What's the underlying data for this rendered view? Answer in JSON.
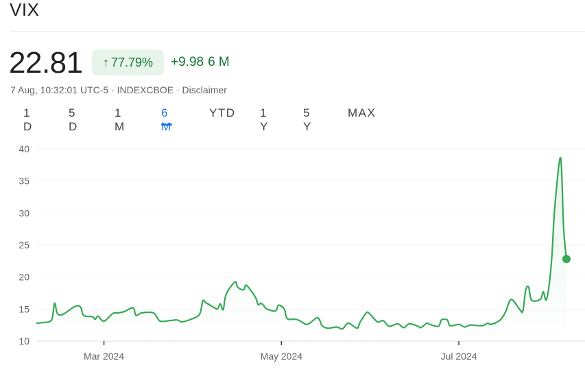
{
  "header": {
    "title": "VIX"
  },
  "quote": {
    "price": "22.81",
    "badge_arrow": "↑",
    "change_percent": "77.79%",
    "change_value": "+9.98",
    "change_period": "6 M",
    "timestamp_source": "7 Aug, 10:32:01 UTC-5 · INDEXCBOE · ",
    "disclaimer": "Disclaimer"
  },
  "tabs": [
    {
      "label": "1 D"
    },
    {
      "label": "5 D"
    },
    {
      "label": "1 M"
    },
    {
      "label": "6 M"
    },
    {
      "label": "YTD"
    },
    {
      "label": "1 Y"
    },
    {
      "label": "5 Y"
    },
    {
      "label": "MAX"
    }
  ],
  "active_tab": "6 M",
  "colors": {
    "line": "#34a853",
    "positive": "#137333",
    "badge_bg": "#e6f4ea",
    "active_tab": "#1a73e8"
  },
  "chart_data": {
    "type": "line",
    "title": "",
    "xlabel": "",
    "ylabel": "",
    "ylim": [
      10,
      40
    ],
    "yticks": [
      10,
      15,
      20,
      25,
      30,
      35,
      40
    ],
    "xlim": [
      "2024-02-07",
      "2024-08-07"
    ],
    "xticks": [
      {
        "label": "Mar 2024",
        "date": "2024-03-01"
      },
      {
        "label": "May 2024",
        "date": "2024-05-01"
      },
      {
        "label": "Jul 2024",
        "date": "2024-07-01"
      }
    ],
    "grid": true,
    "series": [
      {
        "values": [
          [
            "2024-02-07",
            12.8
          ],
          [
            "2024-02-09",
            12.9
          ],
          [
            "2024-02-12",
            13.3
          ],
          [
            "2024-02-13",
            15.9
          ],
          [
            "2024-02-14",
            14.3
          ],
          [
            "2024-02-16",
            14.2
          ],
          [
            "2024-02-20",
            15.4
          ],
          [
            "2024-02-22",
            15.3
          ],
          [
            "2024-02-23",
            14.0
          ],
          [
            "2024-02-26",
            13.8
          ],
          [
            "2024-02-27",
            13.4
          ],
          [
            "2024-02-28",
            13.9
          ],
          [
            "2024-03-01",
            13.1
          ],
          [
            "2024-03-04",
            14.3
          ],
          [
            "2024-03-06",
            14.4
          ],
          [
            "2024-03-08",
            14.6
          ],
          [
            "2024-03-11",
            15.2
          ],
          [
            "2024-03-12",
            14.0
          ],
          [
            "2024-03-14",
            14.4
          ],
          [
            "2024-03-18",
            14.4
          ],
          [
            "2024-03-20",
            13.2
          ],
          [
            "2024-03-22",
            13.1
          ],
          [
            "2024-03-26",
            13.3
          ],
          [
            "2024-03-28",
            13.0
          ],
          [
            "2024-04-01",
            13.6
          ],
          [
            "2024-04-03",
            14.3
          ],
          [
            "2024-04-04",
            16.3
          ],
          [
            "2024-04-05",
            16.0
          ],
          [
            "2024-04-08",
            15.2
          ],
          [
            "2024-04-09",
            15.0
          ],
          [
            "2024-04-10",
            15.8
          ],
          [
            "2024-04-11",
            14.9
          ],
          [
            "2024-04-12",
            17.3
          ],
          [
            "2024-04-15",
            19.2
          ],
          [
            "2024-04-16",
            18.4
          ],
          [
            "2024-04-18",
            18.0
          ],
          [
            "2024-04-19",
            18.7
          ],
          [
            "2024-04-22",
            16.9
          ],
          [
            "2024-04-23",
            15.7
          ],
          [
            "2024-04-24",
            15.9
          ],
          [
            "2024-04-25",
            15.5
          ],
          [
            "2024-04-26",
            15.0
          ],
          [
            "2024-04-29",
            14.7
          ],
          [
            "2024-04-30",
            15.6
          ],
          [
            "2024-05-02",
            15.0
          ],
          [
            "2024-05-03",
            13.5
          ],
          [
            "2024-05-06",
            13.4
          ],
          [
            "2024-05-08",
            13.0
          ],
          [
            "2024-05-10",
            12.6
          ],
          [
            "2024-05-13",
            13.6
          ],
          [
            "2024-05-14",
            13.4
          ],
          [
            "2024-05-15",
            12.4
          ],
          [
            "2024-05-17",
            12.0
          ],
          [
            "2024-05-20",
            12.2
          ],
          [
            "2024-05-22",
            11.9
          ],
          [
            "2024-05-24",
            12.8
          ],
          [
            "2024-05-27",
            12.0
          ],
          [
            "2024-05-28",
            12.9
          ],
          [
            "2024-05-30",
            14.3
          ],
          [
            "2024-05-31",
            14.4
          ],
          [
            "2024-06-03",
            13.0
          ],
          [
            "2024-06-05",
            13.2
          ],
          [
            "2024-06-07",
            12.3
          ],
          [
            "2024-06-10",
            12.7
          ],
          [
            "2024-06-12",
            12.1
          ],
          [
            "2024-06-14",
            12.7
          ],
          [
            "2024-06-17",
            12.3
          ],
          [
            "2024-06-18",
            12.1
          ],
          [
            "2024-06-20",
            12.8
          ],
          [
            "2024-06-21",
            12.6
          ],
          [
            "2024-06-24",
            12.3
          ],
          [
            "2024-06-25",
            13.3
          ],
          [
            "2024-06-27",
            13.3
          ],
          [
            "2024-06-28",
            12.4
          ],
          [
            "2024-07-01",
            12.6
          ],
          [
            "2024-07-03",
            12.2
          ],
          [
            "2024-07-05",
            12.5
          ],
          [
            "2024-07-09",
            12.4
          ],
          [
            "2024-07-11",
            12.8
          ],
          [
            "2024-07-12",
            12.6
          ],
          [
            "2024-07-15",
            13.2
          ],
          [
            "2024-07-17",
            14.5
          ],
          [
            "2024-07-19",
            16.5
          ],
          [
            "2024-07-22",
            14.9
          ],
          [
            "2024-07-23",
            14.7
          ],
          [
            "2024-07-24",
            18.0
          ],
          [
            "2024-07-25",
            18.4
          ],
          [
            "2024-07-26",
            16.4
          ],
          [
            "2024-07-29",
            16.5
          ],
          [
            "2024-07-30",
            17.7
          ],
          [
            "2024-07-31",
            16.4
          ],
          [
            "2024-08-01",
            18.6
          ],
          [
            "2024-08-02",
            23.4
          ],
          [
            "2024-08-03",
            31.0
          ],
          [
            "2024-08-05",
            38.6
          ],
          [
            "2024-08-06",
            27.7
          ],
          [
            "2024-08-07",
            22.81
          ]
        ]
      }
    ]
  }
}
